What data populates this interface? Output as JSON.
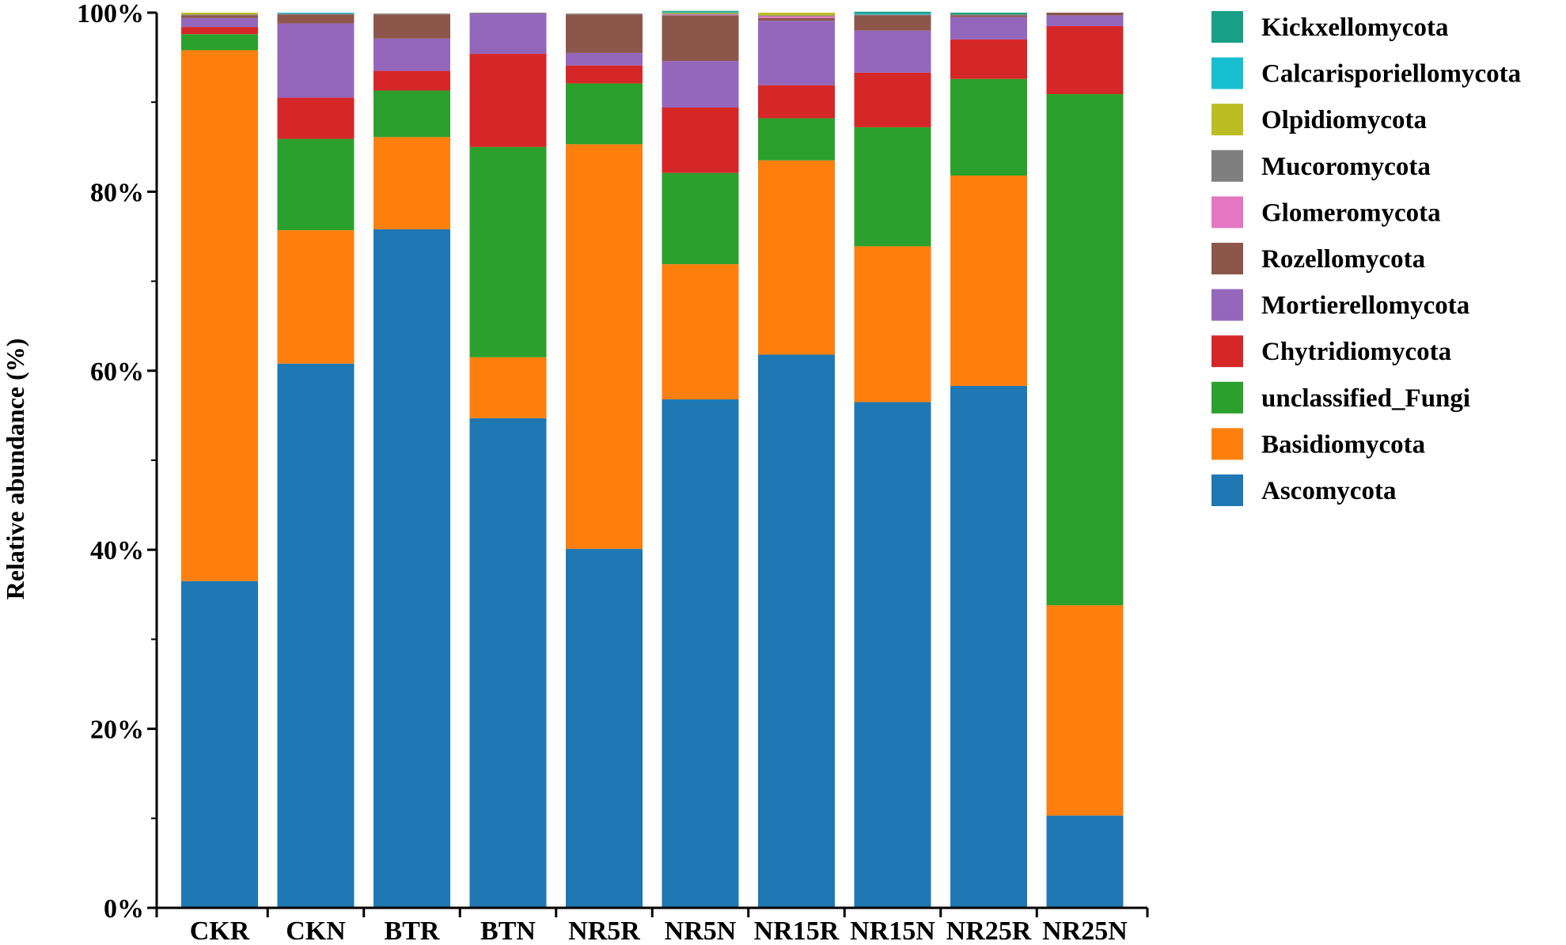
{
  "chart_data": {
    "type": "bar",
    "stacked": true,
    "title": "",
    "xlabel": "",
    "ylabel": "Relative abundance (%)",
    "ylim": [
      0,
      100
    ],
    "yticks": [
      "0%",
      "20%",
      "40%",
      "60%",
      "80%",
      "100%"
    ],
    "legend_position": "right",
    "categories": [
      "CKR",
      "CKN",
      "BTR",
      "BTN",
      "NR5R",
      "NR5N",
      "NR15R",
      "NR15N",
      "NR25R",
      "NR25N"
    ],
    "series": [
      {
        "name": "Ascomycota",
        "color": "#1f77b4",
        "values": [
          36.5,
          60.8,
          75.8,
          54.7,
          40.1,
          56.8,
          61.8,
          56.5,
          58.3,
          10.3
        ]
      },
      {
        "name": "Basidiomycota",
        "color": "#ff7f0e",
        "values": [
          59.3,
          14.9,
          10.3,
          6.8,
          45.2,
          15.1,
          21.7,
          17.4,
          23.5,
          23.5
        ]
      },
      {
        "name": "unclassified_Fungi",
        "color": "#2ca02c",
        "values": [
          1.8,
          10.2,
          5.2,
          23.5,
          6.8,
          10.2,
          4.7,
          13.3,
          10.8,
          57.1
        ]
      },
      {
        "name": "Chytridiomycota",
        "color": "#d62728",
        "values": [
          0.8,
          4.6,
          2.2,
          10.4,
          2.0,
          7.3,
          3.7,
          6.1,
          4.4,
          7.6
        ]
      },
      {
        "name": "Mortierellomycota",
        "color": "#9467bd",
        "values": [
          1.0,
          8.3,
          3.6,
          4.5,
          1.4,
          5.2,
          7.2,
          4.7,
          2.5,
          1.2
        ]
      },
      {
        "name": "Rozellomycota",
        "color": "#8c564b",
        "values": [
          0.3,
          1.0,
          2.7,
          0.0,
          4.3,
          5.1,
          0.3,
          1.7,
          0.2,
          0.3
        ]
      },
      {
        "name": "Glomeromycota",
        "color": "#e377c2",
        "values": [
          0.0,
          0.0,
          0.0,
          0.0,
          0.0,
          0.1,
          0.2,
          0.0,
          0.0,
          0.0
        ]
      },
      {
        "name": "Mucoromycota",
        "color": "#7f7f7f",
        "values": [
          0.1,
          0.1,
          0.1,
          0.1,
          0.1,
          0.1,
          0.1,
          0.1,
          0.1,
          0.0
        ]
      },
      {
        "name": "Olpidiomycota",
        "color": "#bcbd22",
        "values": [
          0.2,
          0.0,
          0.0,
          0.0,
          0.0,
          0.1,
          0.3,
          0.0,
          0.0,
          0.0
        ]
      },
      {
        "name": "Calcarisporiellomycota",
        "color": "#17becf",
        "values": [
          0.0,
          0.1,
          0.0,
          0.0,
          0.0,
          0.1,
          0.0,
          0.1,
          0.0,
          0.0
        ]
      },
      {
        "name": "Kickxellomycota",
        "color": "#17a085",
        "values": [
          0.0,
          0.0,
          0.0,
          0.0,
          0.0,
          0.1,
          0.0,
          0.2,
          0.2,
          0.0
        ]
      }
    ]
  }
}
